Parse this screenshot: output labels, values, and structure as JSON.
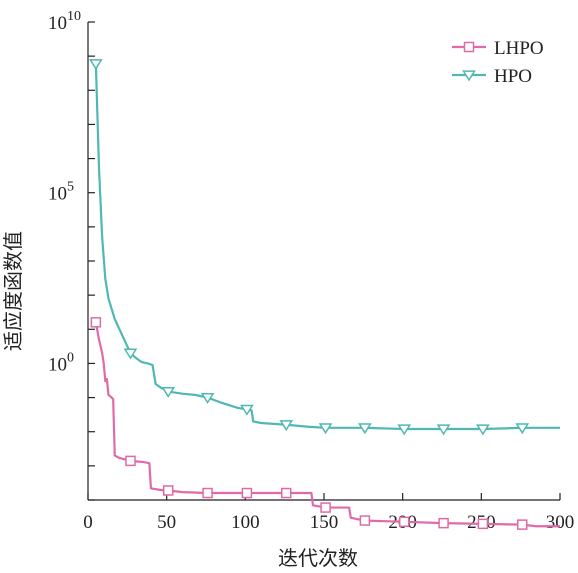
{
  "chart_data": {
    "type": "line",
    "xlabel": "迭代次数",
    "ylabel": "适应度函数值",
    "xlim": [
      0,
      300
    ],
    "ylim_log10": [
      -4,
      10
    ],
    "yscale": "log",
    "x_ticks": [
      0,
      50,
      100,
      150,
      200,
      250,
      300
    ],
    "x_tick_labels": [
      "0",
      "50",
      "100",
      "150",
      "200",
      "250",
      "300"
    ],
    "y_ticks_exponent": [
      0,
      5,
      10
    ],
    "y_tick_labels": [
      {
        "base": "10",
        "exp": "0"
      },
      {
        "base": "10",
        "exp": "5"
      },
      {
        "base": "10",
        "exp": "10"
      }
    ],
    "grid": false,
    "legend_position": "top-right",
    "series": [
      {
        "name": "LHPO",
        "color": "#e06aa8",
        "marker": "square",
        "marker_x": [
          5,
          27,
          51,
          76,
          101,
          126,
          151,
          176,
          201,
          226,
          251,
          276
        ],
        "points": [
          [
            5,
            16.0
          ],
          [
            7,
            5
          ],
          [
            9,
            2
          ],
          [
            10,
            1
          ],
          [
            11,
            0.3
          ],
          [
            12,
            0.35
          ],
          [
            13,
            0.12
          ],
          [
            14,
            0.11
          ],
          [
            15,
            0.1
          ],
          [
            16,
            0.09
          ],
          [
            17,
            0.002
          ],
          [
            20,
            0.0017
          ],
          [
            27,
            0.0014
          ],
          [
            35,
            0.0013
          ],
          [
            39,
            0.0012
          ],
          [
            40,
            0.00022
          ],
          [
            45,
            0.0002
          ],
          [
            51,
            0.00019
          ],
          [
            60,
            0.00017
          ],
          [
            76,
            0.00016
          ],
          [
            101,
            0.00016
          ],
          [
            126,
            0.00016
          ],
          [
            142,
            0.00016
          ],
          [
            143,
            7e-05
          ],
          [
            151,
            6e-05
          ],
          [
            166,
            6e-05
          ],
          [
            167,
            3e-05
          ],
          [
            176,
            2.5e-05
          ],
          [
            201,
            2.3e-05
          ],
          [
            226,
            2.1e-05
          ],
          [
            251,
            2e-05
          ],
          [
            276,
            1.9e-05
          ],
          [
            285,
            1.7e-05
          ],
          [
            300,
            1.7e-05
          ]
        ]
      },
      {
        "name": "HPO",
        "color": "#4fb8b4",
        "marker": "triangle-down",
        "marker_x": [
          5,
          27,
          51,
          76,
          101,
          126,
          151,
          176,
          201,
          226,
          251,
          276
        ],
        "points": [
          [
            5,
            600000000.0
          ],
          [
            7,
            500000.0
          ],
          [
            9,
            5000.0
          ],
          [
            11,
            300
          ],
          [
            13,
            80
          ],
          [
            15,
            40
          ],
          [
            17,
            20
          ],
          [
            20,
            10
          ],
          [
            23,
            5
          ],
          [
            27,
            2
          ],
          [
            30,
            1.5
          ],
          [
            34,
            1.1
          ],
          [
            38,
            1.0
          ],
          [
            41,
            0.9
          ],
          [
            43,
            0.25
          ],
          [
            46,
            0.2
          ],
          [
            51,
            0.15
          ],
          [
            60,
            0.13
          ],
          [
            68,
            0.12
          ],
          [
            76,
            0.1
          ],
          [
            85,
            0.07
          ],
          [
            95,
            0.05
          ],
          [
            101,
            0.045
          ],
          [
            104,
            0.042
          ],
          [
            105,
            0.02
          ],
          [
            110,
            0.018
          ],
          [
            126,
            0.016
          ],
          [
            140,
            0.014
          ],
          [
            151,
            0.013
          ],
          [
            176,
            0.013
          ],
          [
            201,
            0.012
          ],
          [
            226,
            0.012
          ],
          [
            251,
            0.012
          ],
          [
            276,
            0.013
          ],
          [
            300,
            0.013
          ]
        ]
      }
    ]
  }
}
